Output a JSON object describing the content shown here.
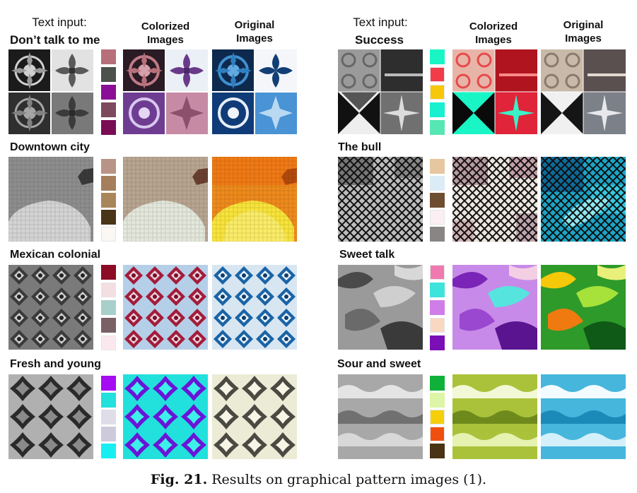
{
  "headers": {
    "left": {
      "text_input": "Text input:",
      "first_title": "Don’t talk to me",
      "colorized": [
        "Colorized",
        "Images"
      ],
      "original": [
        "Original",
        "Images"
      ]
    },
    "right": {
      "text_input": "Text input:",
      "first_title": "Success",
      "colorized": [
        "Colorized",
        "Images"
      ],
      "original": [
        "Original",
        "Images"
      ]
    }
  },
  "rows": {
    "left": [
      {
        "title": "Don’t talk to me",
        "palette": [
          "#b76f7a",
          "#4a524b",
          "#8a0f96",
          "#7c4a5c",
          "#7a0c55"
        ]
      },
      {
        "title": "Downtown city",
        "palette": [
          "#b99486",
          "#a57e5c",
          "#a8865a",
          "#4b3518",
          "#fbf7f2"
        ]
      },
      {
        "title": "Mexican colonial",
        "palette": [
          "#8c0b25",
          "#f3dee2",
          "#a9cfca",
          "#7a6166",
          "#fbe8ef"
        ]
      },
      {
        "title": "Fresh and young",
        "palette": [
          "#a50cf2",
          "#22e0dc",
          "#dfdde8",
          "#cdcadc",
          "#18eef2"
        ]
      }
    ],
    "right": [
      {
        "title": "Success",
        "palette": [
          "#19f5c4",
          "#f23c4a",
          "#f7c80a",
          "#18f0cf",
          "#56e7b4"
        ]
      },
      {
        "title": "The bull",
        "palette": [
          "#e6c7a0",
          "#dcecf6",
          "#6e4e31",
          "#fbeff4",
          "#8a8585"
        ]
      },
      {
        "title": "Sweet talk",
        "palette": [
          "#f07ab0",
          "#3ee3dc",
          "#cf7de8",
          "#f8d8c1",
          "#7a0fb5"
        ]
      },
      {
        "title": "Sour and sweet",
        "palette": [
          "#10b13a",
          "#ddf5a7",
          "#f5d00a",
          "#f0500f",
          "#4a3214"
        ]
      }
    ]
  },
  "caption": {
    "label": "Fig. 21.",
    "text": " Results on graphical pattern images (1)."
  }
}
